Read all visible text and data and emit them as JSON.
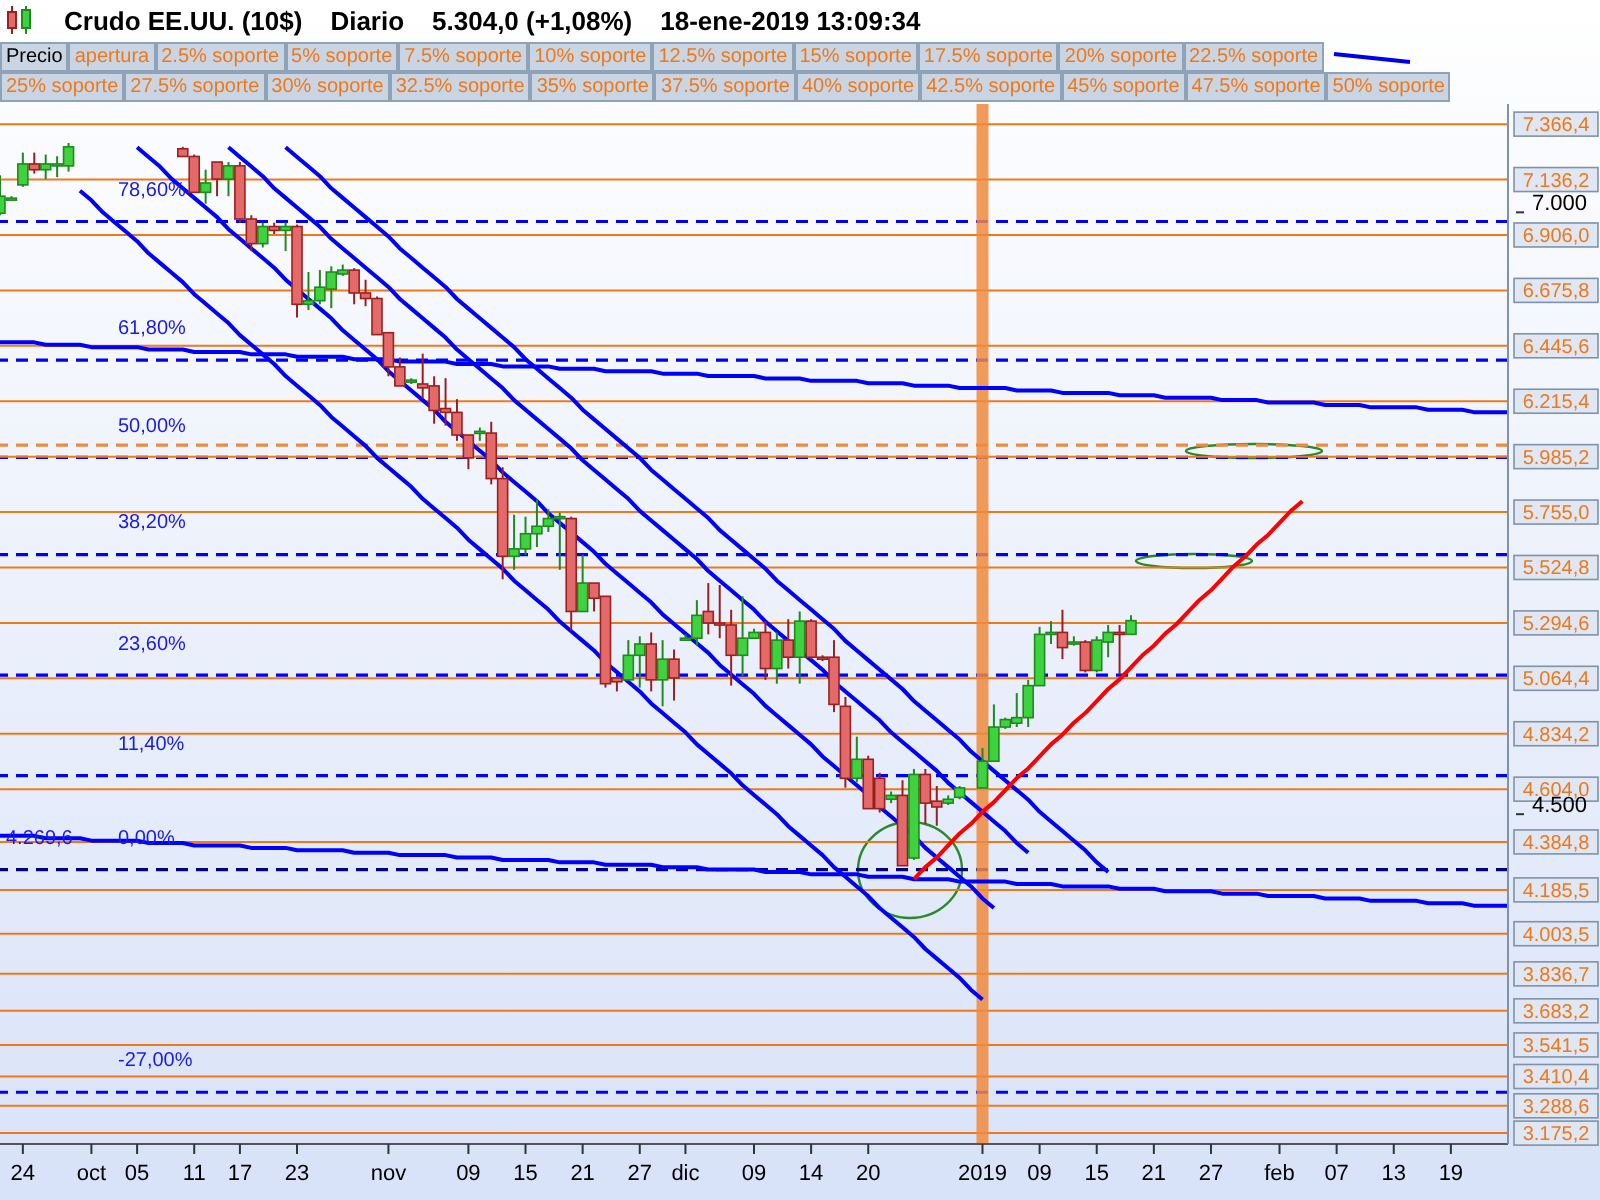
{
  "chart_data": {
    "type": "candlestick",
    "title": "Crudo EE.UU. (10$)",
    "annotations": [
      "Diario",
      "5.304,0 (+1,08%)",
      "18-ene-2019 13:09:34",
      "Precio",
      "apertura",
      "2.5% soporte",
      "5% soporte",
      "7.5% soporte",
      "10% soporte",
      "12.5% soporte",
      "15% soporte",
      "17.5% soporte",
      "20% soporte",
      "22.5% soporte",
      "25% soporte",
      "27.5% soporte",
      "30% soporte",
      "32.5% soporte",
      "35% soporte",
      "37.5% soporte",
      "40% soporte",
      "42.5% soporte",
      "45% soporte",
      "47.5% soporte",
      "50% soporte",
      {
        "text": "78,60%",
        "y": 6962
      },
      {
        "text": "61,80%",
        "y": 6386
      },
      {
        "text": "50,00%",
        "y": 5982
      },
      {
        "text": "38,20%",
        "y": 5578
      },
      {
        "text": "23,60%",
        "y": 5078
      },
      {
        "text": "11,40%",
        "y": 4660
      },
      {
        "text": "0,00%",
        "y": 4269.6
      },
      {
        "text": "4.269,6",
        "y": 4269.6
      },
      {
        "text": "-27,00%",
        "y": 3345
      }
    ],
    "categories": [
      null,
      null,
      "24",
      null,
      null,
      null,
      null,
      null,
      "oct",
      null,
      null,
      null,
      "05",
      null,
      null,
      null,
      null,
      "11",
      null,
      null,
      null,
      "17",
      null,
      null,
      null,
      null,
      "23",
      null,
      null,
      null,
      null,
      null,
      null,
      null,
      "nov",
      null,
      null,
      null,
      null,
      null,
      null,
      "09",
      null,
      null,
      null,
      null,
      "15",
      null,
      null,
      null,
      null,
      "21",
      null,
      null,
      null,
      null,
      "27",
      null,
      null,
      null,
      "dic",
      null,
      null,
      null,
      null,
      null,
      "09",
      null,
      null,
      null,
      null,
      "14",
      null,
      null,
      null,
      null,
      "20",
      null,
      null,
      null,
      null,
      null,
      null,
      null,
      null,
      null,
      "2019",
      null,
      null,
      null,
      null,
      "09",
      null,
      null,
      null,
      null,
      "15",
      null,
      null,
      null,
      null,
      "21",
      null,
      null,
      null,
      null,
      "27",
      null,
      null,
      null,
      null,
      null,
      "feb",
      null,
      null,
      null,
      null,
      "07",
      null,
      null,
      null,
      null,
      "13",
      null,
      null,
      null,
      null,
      "19",
      null,
      null,
      null,
      null,
      null
    ],
    "ohlc": [
      [
        6996,
        7154,
        6988,
        7067
      ],
      [
        7059,
        7067,
        7051,
        7059
      ],
      [
        7114,
        7248,
        7106,
        7201
      ],
      [
        7201,
        7248,
        7161,
        7177
      ],
      [
        7177,
        7240,
        7138,
        7201
      ],
      [
        7201,
        7233,
        7146,
        7201
      ],
      [
        7193,
        7288,
        7169,
        7272
      ],
      null,
      null,
      null,
      null,
      null,
      null,
      null,
      null,
      null,
      [
        7264,
        7272,
        7232,
        7232
      ],
      [
        7232,
        7240,
        7083,
        7083
      ],
      [
        7083,
        7177,
        7036,
        7122
      ],
      [
        7209,
        7209,
        7067,
        7138
      ],
      [
        7138,
        7209,
        7067,
        7193
      ],
      [
        7193,
        7209,
        6957,
        6972
      ],
      [
        6972,
        6988,
        6839,
        6870
      ],
      [
        6870,
        6957,
        6854,
        6941
      ],
      [
        6941,
        6957,
        6910,
        6925
      ],
      [
        6925,
        6957,
        6839,
        6941
      ],
      [
        6941,
        6949,
        6563,
        6618
      ],
      [
        6618,
        6752,
        6594,
        6633
      ],
      [
        6633,
        6760,
        6618,
        6689
      ],
      [
        6681,
        6776,
        6602,
        6752
      ],
      [
        6744,
        6783,
        6736,
        6760
      ],
      [
        6760,
        6768,
        6618,
        6665
      ],
      [
        6665,
        6720,
        6610,
        6642
      ],
      [
        6642,
        6650,
        6492,
        6492
      ],
      [
        6500,
        6500,
        6319,
        6358
      ],
      [
        6358,
        6397,
        6279,
        6279
      ],
      [
        6295,
        6311,
        6287,
        6303
      ],
      [
        6287,
        6413,
        6224,
        6271
      ],
      [
        6279,
        6319,
        6122,
        6177
      ],
      [
        6185,
        6311,
        6114,
        6169
      ],
      [
        6169,
        6224,
        6051,
        6075
      ],
      [
        6075,
        6075,
        5933,
        5980
      ],
      [
        6083,
        6106,
        6051,
        6090
      ],
      [
        6083,
        6130,
        5870,
        5894
      ],
      [
        5894,
        5941,
        5476,
        5571
      ],
      [
        5571,
        5744,
        5515,
        5602
      ],
      [
        5602,
        5736,
        5578,
        5665
      ],
      [
        5665,
        5807,
        5610,
        5696
      ],
      [
        5696,
        5767,
        5672,
        5728
      ],
      [
        5728,
        5752,
        5515,
        5736
      ],
      [
        5728,
        5736,
        5263,
        5342
      ],
      [
        5342,
        5578,
        5342,
        5460
      ],
      [
        5460,
        5460,
        5342,
        5397
      ],
      [
        5405,
        5405,
        5026,
        5042
      ],
      [
        5066,
        5066,
        5010,
        5050
      ],
      [
        5058,
        5223,
        5058,
        5160
      ],
      [
        5160,
        5239,
        5026,
        5207
      ],
      [
        5207,
        5255,
        5010,
        5058
      ],
      [
        5058,
        5223,
        4948,
        5144
      ],
      [
        5144,
        5184,
        4972,
        5066
      ],
      [
        5231,
        5247,
        5223,
        5231
      ],
      [
        5231,
        5389,
        5200,
        5326
      ],
      [
        5342,
        5460,
        5247,
        5294
      ],
      [
        5294,
        5452,
        5231,
        5286
      ],
      [
        5286,
        5349,
        5034,
        5160
      ],
      [
        5160,
        5405,
        5074,
        5231
      ],
      [
        5231,
        5270,
        5231,
        5255
      ],
      [
        5255,
        5302,
        5058,
        5105
      ],
      [
        5105,
        5255,
        5042,
        5223
      ],
      [
        5223,
        5310,
        5105,
        5152
      ],
      [
        5152,
        5342,
        5042,
        5302
      ],
      [
        5302,
        5310,
        5144,
        5152
      ],
      [
        5152,
        5160,
        5136,
        5144
      ],
      [
        5152,
        5223,
        4924,
        4956
      ],
      [
        4948,
        4987,
        4610,
        4649
      ],
      [
        4649,
        4822,
        4633,
        4728
      ],
      [
        4728,
        4743,
        4523,
        4523
      ],
      [
        4649,
        4672,
        4507,
        4523
      ],
      [
        4562,
        4594,
        4546,
        4578
      ],
      [
        4578,
        4641,
        4286,
        4286
      ],
      [
        4318,
        4688,
        4310,
        4665
      ],
      [
        4665,
        4688,
        4460,
        4546
      ],
      [
        4554,
        4617,
        4452,
        4530
      ],
      [
        4546,
        4578,
        4538,
        4562
      ],
      [
        4570,
        4617,
        4562,
        4609
      ],
      null,
      [
        4609,
        4775,
        4609,
        4720
      ],
      [
        4720,
        4956,
        4720,
        4862
      ],
      [
        4862,
        4901,
        4854,
        4893
      ],
      [
        4878,
        5003,
        4862,
        4901
      ],
      [
        4901,
        5058,
        4862,
        5034
      ],
      [
        5034,
        5278,
        5034,
        5247
      ],
      [
        5247,
        5302,
        5207,
        5255
      ],
      [
        5255,
        5349,
        5144,
        5192
      ],
      [
        5207,
        5239,
        5200,
        5215
      ],
      [
        5215,
        5223,
        5089,
        5097
      ],
      [
        5097,
        5239,
        5089,
        5223
      ],
      [
        5215,
        5286,
        5152,
        5255
      ],
      [
        5255,
        5286,
        5081,
        5247
      ],
      [
        5247,
        5326,
        5247,
        5304
      ],
      null,
      null,
      null,
      null,
      null,
      null,
      null,
      null,
      null,
      null,
      null,
      null,
      null,
      null,
      null,
      null,
      null,
      null,
      null,
      null,
      null,
      null,
      null,
      null,
      null,
      null,
      null,
      null,
      null,
      null,
      null,
      null,
      null
    ],
    "series": [
      {
        "type": "line",
        "color": "#0000ff",
        "values": [
          6460,
          6460,
          6460,
          6460,
          6450,
          6450,
          6450,
          6450,
          6440,
          6440,
          6440,
          6440,
          6440,
          6430,
          6430,
          6430,
          6430,
          6420,
          6420,
          6420,
          6420,
          6420,
          6410,
          6410,
          6410,
          6410,
          6400,
          6400,
          6400,
          6400,
          6400,
          6390,
          6390,
          6390,
          6390,
          6380,
          6380,
          6380,
          6380,
          6380,
          6370,
          6370,
          6370,
          6370,
          6360,
          6360,
          6360,
          6360,
          6360,
          6350,
          6350,
          6350,
          6350,
          6340,
          6340,
          6340,
          6340,
          6340,
          6330,
          6330,
          6330,
          6330,
          6320,
          6320,
          6320,
          6320,
          6320,
          6310,
          6310,
          6310,
          6310,
          6300,
          6300,
          6300,
          6300,
          6300,
          6290,
          6290,
          6290,
          6290,
          6280,
          6280,
          6280,
          6280,
          6270,
          6270,
          6270,
          6270,
          6270,
          6260,
          6260,
          6260,
          6260,
          6250,
          6250,
          6250,
          6250,
          6250,
          6240,
          6240,
          6240,
          6240,
          6230,
          6230,
          6230,
          6230,
          6230,
          6220,
          6220,
          6220,
          6220,
          6210,
          6210,
          6210,
          6210,
          6210,
          6200,
          6200,
          6200,
          6200,
          6190,
          6190,
          6190,
          6190,
          6190,
          6180,
          6180,
          6180,
          6180,
          6170,
          6170,
          6170,
          6170
        ]
      },
      {
        "type": "line",
        "color": "#0000ff",
        "values": [
          4410,
          4410,
          4410,
          4410,
          4400,
          4400,
          4400,
          4400,
          4390,
          4390,
          4390,
          4390,
          4390,
          4380,
          4380,
          4380,
          4380,
          4370,
          4370,
          4370,
          4370,
          4370,
          4360,
          4360,
          4360,
          4360,
          4350,
          4350,
          4350,
          4350,
          4350,
          4340,
          4340,
          4340,
          4340,
          4330,
          4330,
          4330,
          4330,
          4330,
          4320,
          4320,
          4320,
          4320,
          4310,
          4310,
          4310,
          4310,
          4310,
          4300,
          4300,
          4300,
          4300,
          4290,
          4290,
          4290,
          4290,
          4290,
          4280,
          4280,
          4280,
          4280,
          4270,
          4270,
          4270,
          4270,
          4270,
          4260,
          4260,
          4260,
          4260,
          4250,
          4250,
          4250,
          4250,
          4250,
          4240,
          4240,
          4240,
          4240,
          4230,
          4230,
          4230,
          4230,
          4220,
          4220,
          4220,
          4220,
          4220,
          4210,
          4210,
          4210,
          4210,
          4200,
          4200,
          4200,
          4200,
          4200,
          4190,
          4190,
          4190,
          4190,
          4180,
          4180,
          4180,
          4180,
          4180,
          4170,
          4170,
          4170,
          4170,
          4160,
          4160,
          4160,
          4160,
          4160,
          4150,
          4150,
          4150,
          4150,
          4140,
          4140,
          4140,
          4140,
          4140,
          4130,
          4130,
          4130,
          4130,
          4120,
          4120,
          4120,
          4120
        ]
      },
      {
        "type": "line",
        "color": "#0000ff",
        "values": [
          null,
          null,
          null,
          null,
          null,
          null,
          null,
          7090,
          7050,
          7000,
          6960,
          6920,
          6880,
          6830,
          6790,
          6750,
          6710,
          6660,
          6620,
          6580,
          6540,
          6490,
          6450,
          6410,
          6370,
          6320,
          6280,
          6240,
          6200,
          6150,
          6110,
          6070,
          6030,
          5980,
          5940,
          5900,
          5860,
          5810,
          5770,
          5730,
          5690,
          5640,
          5600,
          5560,
          5520,
          5470,
          5430,
          5390,
          5350,
          5300,
          5260,
          5220,
          5180,
          5130,
          5090,
          5050,
          5010,
          4960,
          4920,
          4880,
          4840,
          4790,
          4750,
          4710,
          4670,
          4620,
          4580,
          4540,
          4500,
          4450,
          4410,
          4370,
          4330,
          4280,
          4240,
          4200,
          4160,
          4110,
          4070,
          4030,
          3990,
          3940,
          3900,
          3860,
          3820,
          3770,
          3730,
          null,
          null,
          null,
          null,
          null,
          null,
          null,
          null,
          null,
          null,
          null,
          null,
          null,
          null,
          null,
          null,
          null,
          null,
          null,
          null,
          null,
          null,
          null,
          null,
          null,
          null,
          null,
          null,
          null,
          null,
          null,
          null,
          null,
          null,
          null,
          null,
          null,
          null,
          null,
          null,
          null,
          null,
          null,
          null,
          null,
          null
        ]
      },
      {
        "type": "line",
        "color": "#0000ff",
        "values": [
          null,
          null,
          null,
          null,
          null,
          null,
          null,
          null,
          null,
          null,
          null,
          null,
          7270,
          7230,
          7190,
          7140,
          7100,
          7060,
          7020,
          6980,
          6930,
          6890,
          6850,
          6810,
          6770,
          6720,
          6680,
          6640,
          6600,
          6560,
          6510,
          6470,
          6430,
          6390,
          6340,
          6300,
          6260,
          6220,
          6180,
          6130,
          6090,
          6050,
          6010,
          5970,
          5920,
          5880,
          5840,
          5800,
          5750,
          5710,
          5670,
          5630,
          5590,
          5540,
          5500,
          5460,
          5420,
          5380,
          5330,
          5290,
          5250,
          5210,
          5170,
          5120,
          5080,
          5040,
          5000,
          4950,
          4910,
          4870,
          4830,
          4790,
          4740,
          4700,
          4660,
          4620,
          4580,
          4530,
          4490,
          4450,
          4410,
          4360,
          4320,
          4280,
          4240,
          4200,
          4150,
          4110,
          null,
          null,
          null,
          null,
          null,
          null,
          null,
          null,
          null,
          null,
          null,
          null,
          null,
          null,
          null,
          null,
          null,
          null,
          null,
          null,
          null,
          null,
          null,
          null,
          null,
          null,
          null,
          null,
          null,
          null,
          null,
          null,
          null,
          null,
          null,
          null,
          null,
          null,
          null,
          null,
          null,
          null,
          null,
          null,
          null
        ]
      },
      {
        "type": "line",
        "color": "#0000ff",
        "values": [
          null,
          null,
          null,
          null,
          null,
          null,
          null,
          null,
          null,
          null,
          null,
          null,
          null,
          null,
          null,
          null,
          null,
          null,
          null,
          null,
          7270,
          7230,
          7190,
          7150,
          7100,
          7060,
          7020,
          6980,
          6940,
          6890,
          6850,
          6810,
          6770,
          6730,
          6690,
          6640,
          6600,
          6560,
          6520,
          6480,
          6430,
          6390,
          6350,
          6310,
          6270,
          6220,
          6180,
          6140,
          6100,
          6060,
          6020,
          5970,
          5930,
          5890,
          5850,
          5810,
          5760,
          5720,
          5680,
          5640,
          5600,
          5560,
          5510,
          5470,
          5430,
          5390,
          5350,
          5300,
          5260,
          5220,
          5180,
          5140,
          5100,
          5050,
          5010,
          4970,
          4930,
          4890,
          4840,
          4800,
          4760,
          4720,
          4680,
          4630,
          4590,
          4550,
          4510,
          4470,
          4430,
          4380,
          4340,
          null,
          null,
          null,
          null,
          null,
          null,
          null,
          null,
          null,
          null,
          null,
          null,
          null,
          null,
          null,
          null,
          null,
          null,
          null,
          null,
          null,
          null,
          null,
          null,
          null,
          null,
          null,
          null,
          null,
          null,
          null,
          null,
          null,
          null,
          null,
          null,
          null,
          null,
          null,
          null,
          null,
          null
        ]
      },
      {
        "type": "line",
        "color": "#0000ff",
        "values": [
          null,
          null,
          null,
          null,
          null,
          null,
          null,
          null,
          null,
          null,
          null,
          null,
          null,
          null,
          null,
          null,
          null,
          null,
          null,
          null,
          null,
          null,
          null,
          null,
          null,
          7270,
          7230,
          7190,
          7150,
          7100,
          7060,
          7020,
          6980,
          6940,
          6900,
          6850,
          6810,
          6770,
          6730,
          6690,
          6640,
          6600,
          6560,
          6520,
          6480,
          6440,
          6390,
          6350,
          6310,
          6270,
          6230,
          6180,
          6140,
          6100,
          6060,
          6020,
          5980,
          5930,
          5890,
          5850,
          5810,
          5770,
          5730,
          5680,
          5640,
          5600,
          5560,
          5520,
          5470,
          5430,
          5390,
          5350,
          5310,
          5270,
          5220,
          5180,
          5140,
          5100,
          5060,
          5020,
          4970,
          4930,
          4890,
          4850,
          4810,
          4760,
          4720,
          4680,
          4640,
          4600,
          4560,
          4510,
          4470,
          4430,
          4390,
          4350,
          4300,
          4260,
          null,
          null,
          null,
          null,
          null,
          null,
          null,
          null,
          null,
          null,
          null,
          null,
          null,
          null,
          null,
          null,
          null,
          null,
          null,
          null,
          null,
          null,
          null,
          null,
          null,
          null,
          null,
          null,
          null,
          null,
          null,
          null,
          null,
          null,
          null
        ]
      },
      {
        "type": "line",
        "color": "#ff0000",
        "values": [
          null,
          null,
          null,
          null,
          null,
          null,
          null,
          null,
          null,
          null,
          null,
          null,
          null,
          null,
          null,
          null,
          null,
          null,
          null,
          null,
          null,
          null,
          null,
          null,
          null,
          null,
          null,
          null,
          null,
          null,
          null,
          null,
          null,
          null,
          null,
          null,
          null,
          null,
          null,
          null,
          null,
          null,
          null,
          null,
          null,
          null,
          null,
          null,
          null,
          null,
          null,
          null,
          null,
          null,
          null,
          null,
          null,
          null,
          null,
          null,
          null,
          null,
          null,
          null,
          null,
          null,
          null,
          null,
          null,
          null,
          null,
          null,
          null,
          null,
          null,
          null,
          null,
          null,
          null,
          null,
          4230,
          4280,
          4320,
          4370,
          4420,
          4460,
          4510,
          4550,
          4600,
          4650,
          4690,
          4740,
          4790,
          4830,
          4880,
          4920,
          4970,
          5020,
          5060,
          5110,
          5160,
          5200,
          5250,
          5290,
          5340,
          5390,
          5430,
          5480,
          5530,
          5570,
          5620,
          5660,
          5710,
          5760,
          5800,
          null,
          null,
          null,
          null,
          null,
          null,
          null,
          null,
          null,
          null,
          null,
          null,
          null,
          null,
          null,
          null,
          null,
          null
        ]
      }
    ],
    "ylim": [
      3130,
      7450
    ],
    "yticks": [
      {
        "value": 7000,
        "label": "7.000"
      },
      {
        "value": 4500,
        "label": "4.500"
      }
    ],
    "ref_lines": [
      {
        "axis": "y",
        "value": 6962,
        "color": "#0000ff",
        "line_style": "dashed"
      },
      {
        "axis": "y",
        "value": 6386,
        "color": "#0000ff",
        "line_style": "dashed"
      },
      {
        "axis": "y",
        "value": 5982,
        "color": "#0000ff",
        "line_style": "dashed"
      },
      {
        "axis": "y",
        "value": 5578,
        "color": "#0000ff",
        "line_style": "dashed"
      },
      {
        "axis": "y",
        "value": 5078,
        "color": "#0000ff",
        "line_style": "dashed"
      },
      {
        "axis": "y",
        "value": 4660,
        "color": "#0000ff",
        "line_style": "dashed"
      },
      {
        "axis": "y",
        "value": 4269.6,
        "color": "#000080",
        "line_style": "dashed"
      },
      {
        "axis": "y",
        "value": 3345,
        "color": "#0000ff",
        "line_style": "dashed"
      },
      {
        "axis": "y",
        "value": 6033,
        "color": "#f08a3c",
        "line_style": "dashed"
      },
      {
        "axis": "y",
        "value": 7366.4,
        "label": "7.366,4",
        "color": "#f07818",
        "line_style": "solid"
      },
      {
        "axis": "y",
        "value": 7136.2,
        "label": "7.136,2",
        "color": "#f07818",
        "line_style": "solid"
      },
      {
        "axis": "y",
        "value": 6906.0,
        "label": "6.906,0",
        "color": "#f07818",
        "line_style": "solid"
      },
      {
        "axis": "y",
        "value": 6675.8,
        "label": "6.675,8",
        "color": "#f07818",
        "line_style": "solid"
      },
      {
        "axis": "y",
        "value": 6445.6,
        "label": "6.445,6",
        "color": "#f07818",
        "line_style": "solid"
      },
      {
        "axis": "y",
        "value": 6215.4,
        "label": "6.215,4",
        "color": "#f07818",
        "line_style": "solid"
      },
      {
        "axis": "y",
        "value": 5985.2,
        "label": "5.985,2",
        "color": "#f07818",
        "line_style": "solid"
      },
      {
        "axis": "y",
        "value": 5755.0,
        "label": "5.755,0",
        "color": "#f07818",
        "line_style": "solid"
      },
      {
        "axis": "y",
        "value": 5524.8,
        "label": "5.524,8",
        "color": "#f07818",
        "line_style": "solid"
      },
      {
        "axis": "y",
        "value": 5294.6,
        "label": "5.294,6",
        "color": "#f07818",
        "line_style": "solid"
      },
      {
        "axis": "y",
        "value": 5064.4,
        "label": "5.064,4",
        "color": "#f07818",
        "line_style": "solid"
      },
      {
        "axis": "y",
        "value": 4834.2,
        "label": "4.834,2",
        "color": "#f07818",
        "line_style": "solid"
      },
      {
        "axis": "y",
        "value": 4604.0,
        "label": "4.604,0",
        "color": "#f07818",
        "line_style": "solid"
      },
      {
        "axis": "y",
        "value": 4384.8,
        "label": "4.384,8",
        "color": "#f07818",
        "line_style": "solid"
      },
      {
        "axis": "y",
        "value": 4185.5,
        "label": "4.185,5",
        "color": "#f07818",
        "line_style": "solid"
      },
      {
        "axis": "y",
        "value": 4003.5,
        "label": "4.003,5",
        "color": "#f07818",
        "line_style": "solid"
      },
      {
        "axis": "y",
        "value": 3836.7,
        "label": "3.836,7",
        "color": "#f07818",
        "line_style": "solid"
      },
      {
        "axis": "y",
        "value": 3683.2,
        "label": "3.683,2",
        "color": "#f07818",
        "line_style": "solid"
      },
      {
        "axis": "y",
        "value": 3541.5,
        "label": "3.541,5",
        "color": "#f07818",
        "line_style": "solid"
      },
      {
        "axis": "y",
        "value": 3410.4,
        "label": "3.410,4",
        "color": "#f07818",
        "line_style": "solid"
      },
      {
        "axis": "y",
        "value": 3288.6,
        "label": "3.288,6",
        "color": "#f07818",
        "line_style": "solid"
      },
      {
        "axis": "y",
        "value": 3175.2,
        "label": "3.175,2",
        "color": "#f07818",
        "line_style": "solid"
      },
      {
        "axis": "x",
        "value": "2019",
        "color": "#f08a3c",
        "line_style": "solid"
      }
    ]
  }
}
